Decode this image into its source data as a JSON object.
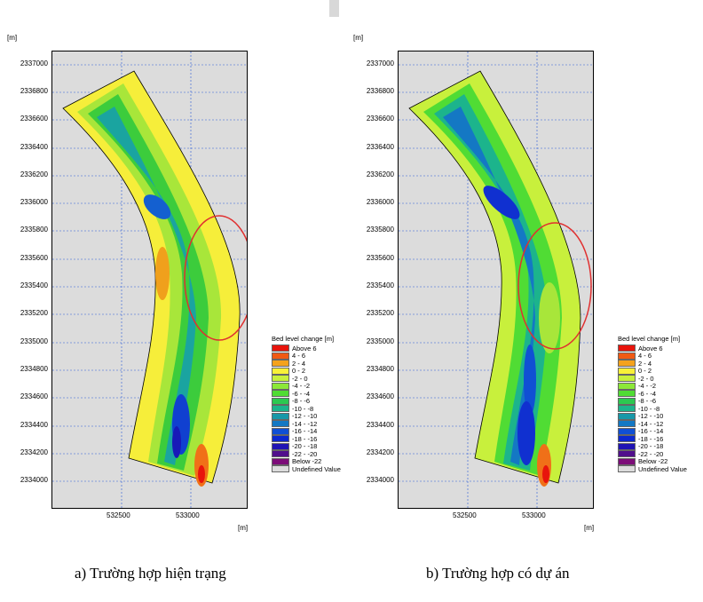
{
  "units": {
    "y_unit": "[m]",
    "x_unit": "[m]"
  },
  "y_ticks": [
    "2337000",
    "2336800",
    "2336600",
    "2336400",
    "2336200",
    "2336000",
    "2335800",
    "2335600",
    "2335400",
    "2335200",
    "2335000",
    "2334800",
    "2334600",
    "2334400",
    "2334200",
    "2334000"
  ],
  "x_ticks": [
    "532500",
    "533000"
  ],
  "legend": {
    "title": "Bed level change [m]",
    "items": [
      {
        "label": "Above  6",
        "color": "#e8140c"
      },
      {
        "label": "4 -  6",
        "color": "#f05a14"
      },
      {
        "label": "2 -  4",
        "color": "#f4a21c"
      },
      {
        "label": "0 -  2",
        "color": "#f8f038"
      },
      {
        "label": "-2 -  0",
        "color": "#c8f03c"
      },
      {
        "label": "-4 - -2",
        "color": "#8ce838"
      },
      {
        "label": "-6 - -4",
        "color": "#50dc34"
      },
      {
        "label": "-8 - -6",
        "color": "#2cc850"
      },
      {
        "label": "-10 - -8",
        "color": "#1cb48c"
      },
      {
        "label": "-12 - -10",
        "color": "#1898a8"
      },
      {
        "label": "-14 - -12",
        "color": "#1478c4"
      },
      {
        "label": "-16 - -14",
        "color": "#1050d4"
      },
      {
        "label": "-18 - -16",
        "color": "#0c28d0"
      },
      {
        "label": "-20 - -18",
        "color": "#2014b4"
      },
      {
        "label": "-22 - -20",
        "color": "#50108c"
      },
      {
        "label": "Below -22",
        "color": "#7c0c78"
      },
      {
        "label": "Undefined Value",
        "color": "#dcdcdc"
      }
    ]
  },
  "panels": [
    {
      "caption": "a)  Trường hợp hiện trạng"
    },
    {
      "caption": "b)  Trường hợp có dự án"
    }
  ]
}
